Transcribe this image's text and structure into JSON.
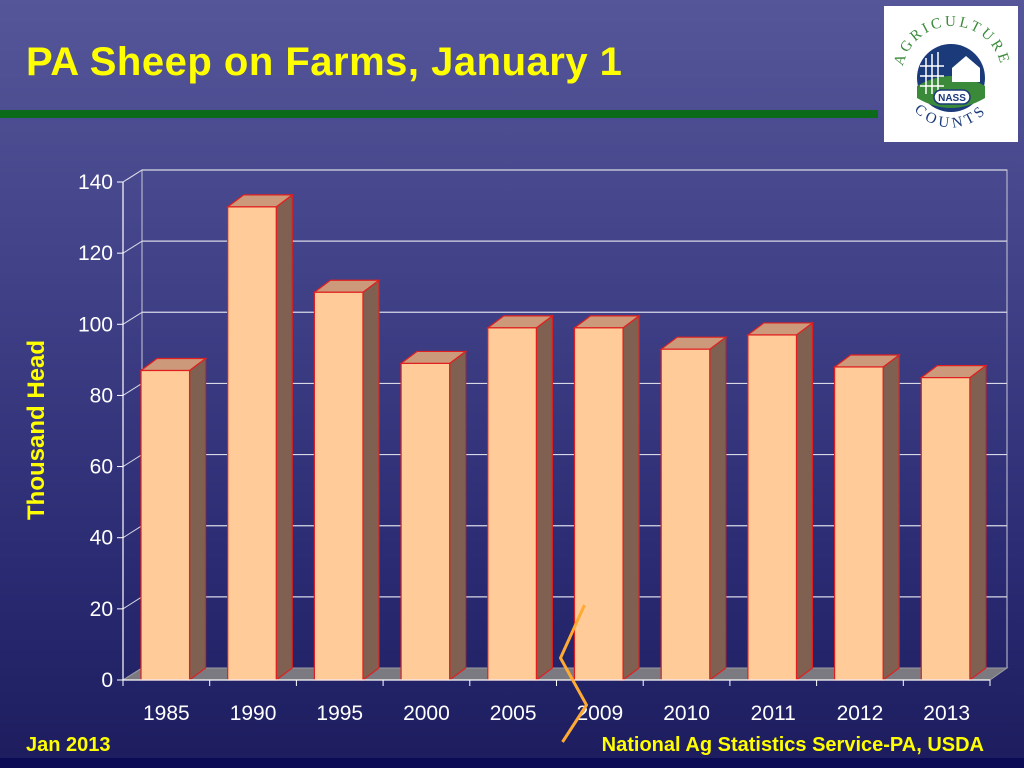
{
  "slide": {
    "title": "PA Sheep on Farms, January 1",
    "footer_left": "Jan 2013",
    "footer_right": "National Ag Statistics Service-PA, USDA"
  },
  "logo": {
    "top_text": "AGRICULTURE",
    "bottom_text": "COUNTS",
    "badge_text": "NASS",
    "colors": {
      "blue": "#1a3a7a",
      "green": "#3a8a3a"
    }
  },
  "chart_data": {
    "type": "bar",
    "title": "",
    "xlabel": "",
    "ylabel": "Thousand Head",
    "ylim": [
      0,
      140
    ],
    "yticks": [
      0,
      20,
      40,
      60,
      80,
      100,
      120,
      140
    ],
    "grid": true,
    "axis_break_between": [
      "2005",
      "2009"
    ],
    "categories": [
      "1985",
      "1990",
      "1995",
      "2000",
      "2005",
      "2009",
      "2010",
      "2011",
      "2012",
      "2013"
    ],
    "values": [
      87,
      133,
      109,
      89,
      99,
      99,
      93,
      97,
      88,
      85
    ],
    "colors": {
      "bar_front": "#ffcc99",
      "bar_side": "#806050",
      "bar_top": "#cc9a7a",
      "bar_edge": "#e02020",
      "break_mark": "#ffaa33",
      "floor": "#7a7a80"
    }
  }
}
